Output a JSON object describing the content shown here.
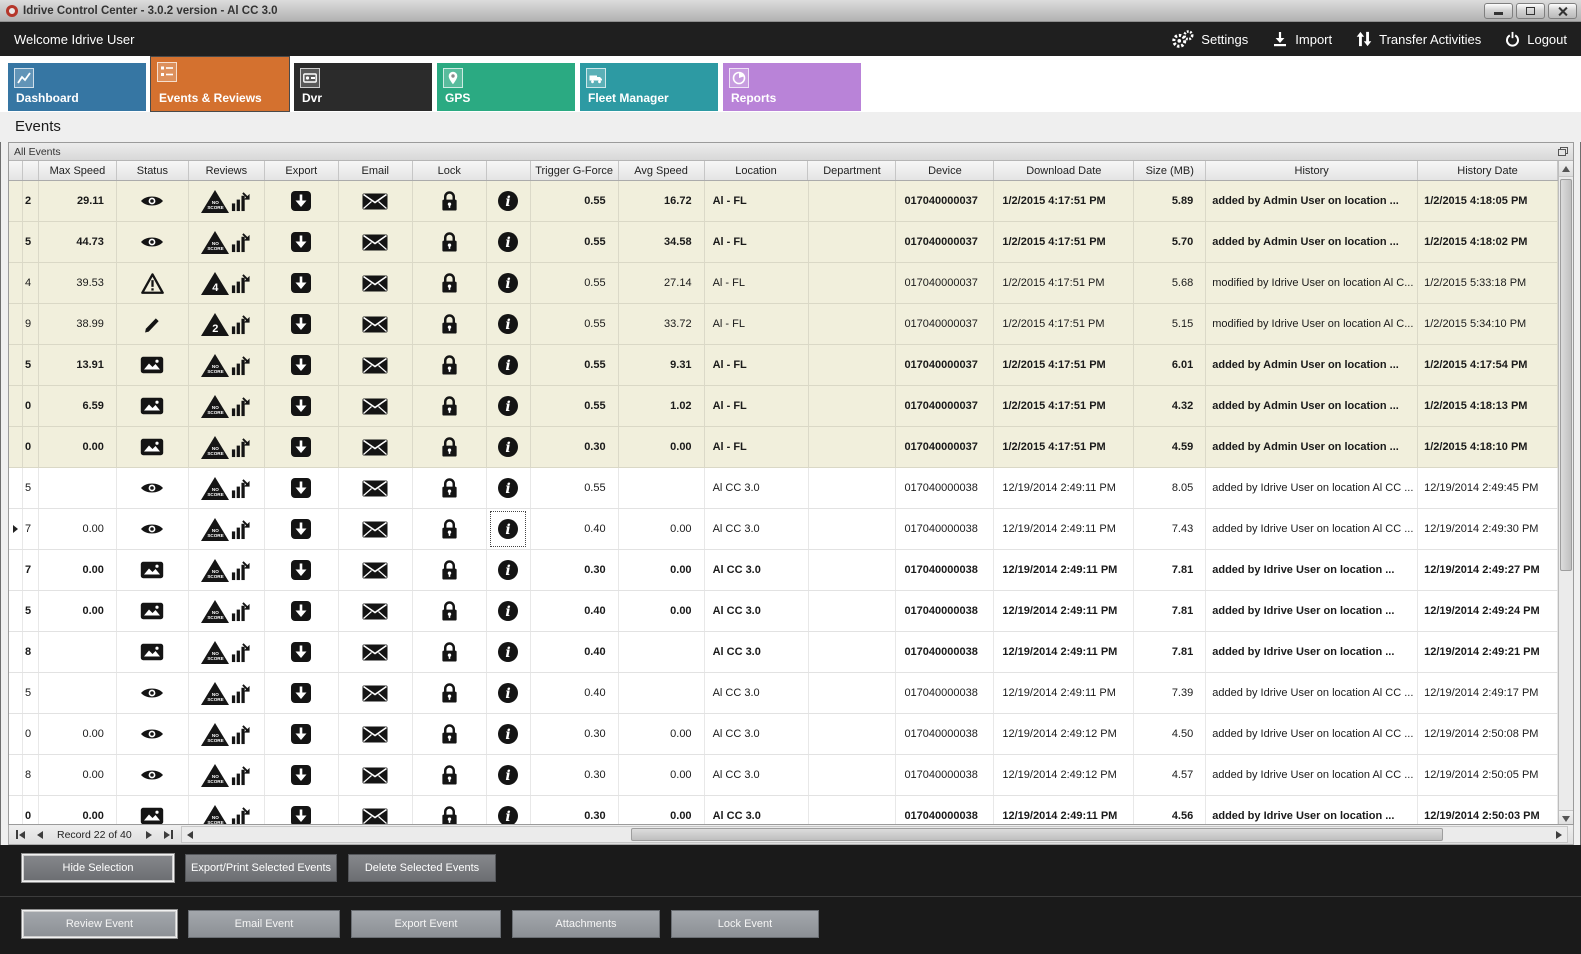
{
  "titlebar": {
    "title": "Idrive Control Center - 3.0.2 version - Al CC 3.0"
  },
  "menubar": {
    "welcome": "Welcome Idrive User",
    "settings": "Settings",
    "import": "Import",
    "transfer_activities": "Transfer Activities",
    "logout": "Logout"
  },
  "tabs": [
    {
      "label": "Dashboard",
      "color": "#3676A3",
      "selected": false
    },
    {
      "label": "Events & Reviews",
      "color": "#D4712F",
      "selected": true
    },
    {
      "label": "Dvr",
      "color": "#2B2B2B",
      "selected": false
    },
    {
      "label": "GPS",
      "color": "#2BAA82",
      "selected": false
    },
    {
      "label": "Fleet Manager",
      "color": "#2D9AA3",
      "selected": false
    },
    {
      "label": "Reports",
      "color": "#B983D8",
      "selected": false
    }
  ],
  "page": {
    "heading": "Events",
    "panel_title": "All Events"
  },
  "icons": {
    "menubar": [
      "gears-icon",
      "download-icon",
      "transfer-arrows-icon",
      "power-icon"
    ],
    "status_types": [
      "eye-icon",
      "warning-icon",
      "pencil-icon",
      "image-icon"
    ],
    "row_icons": [
      "score-triangle-icon",
      "review-chart-icon",
      "export-icon",
      "email-icon",
      "lock-icon",
      "info-icon"
    ]
  },
  "grid": {
    "columns": [
      "",
      "",
      "Max Speed",
      "Status",
      "Reviews",
      "Export",
      "Email",
      "Lock",
      "",
      "Trigger G-Force",
      "Avg Speed",
      "Location",
      "Department",
      "Device",
      "Download Date",
      "Size (MB)",
      "History",
      "History Date"
    ],
    "rows": [
      {
        "id": "2",
        "max_speed": "29.11",
        "status": "eye",
        "review_type": "noscore",
        "review_label": "NO SCORE",
        "trigger_g": "0.55",
        "avg_speed": "16.72",
        "location": "Al - FL",
        "department": "",
        "device": "017040000037",
        "download_date": "1/2/2015 4:17:51 PM",
        "size_mb": "5.89",
        "history": "added by Admin User on location ...",
        "history_date": "1/2/2015 4:18:05 PM",
        "bold": true,
        "beige": true,
        "selected": false
      },
      {
        "id": "5",
        "max_speed": "44.73",
        "status": "eye",
        "review_type": "noscore",
        "review_label": "NO SCORE",
        "trigger_g": "0.55",
        "avg_speed": "34.58",
        "location": "Al - FL",
        "department": "",
        "device": "017040000037",
        "download_date": "1/2/2015 4:17:51 PM",
        "size_mb": "5.70",
        "history": "added by Admin User on location ...",
        "history_date": "1/2/2015 4:18:02 PM",
        "bold": true,
        "beige": true,
        "selected": false
      },
      {
        "id": "4",
        "max_speed": "39.53",
        "status": "warning",
        "review_type": "score",
        "review_label": "4",
        "trigger_g": "0.55",
        "avg_speed": "27.14",
        "location": "Al - FL",
        "department": "",
        "device": "017040000037",
        "download_date": "1/2/2015 4:17:51 PM",
        "size_mb": "5.68",
        "history": "modified by Idrive User on location Al C...",
        "history_date": "1/2/2015 5:33:18 PM",
        "bold": false,
        "beige": true,
        "selected": false
      },
      {
        "id": "9",
        "max_speed": "38.99",
        "status": "pencil",
        "review_type": "score",
        "review_label": "2",
        "trigger_g": "0.55",
        "avg_speed": "33.72",
        "location": "Al - FL",
        "department": "",
        "device": "017040000037",
        "download_date": "1/2/2015 4:17:51 PM",
        "size_mb": "5.15",
        "history": "modified by Idrive User on location Al C...",
        "history_date": "1/2/2015 5:34:10 PM",
        "bold": false,
        "beige": true,
        "selected": false
      },
      {
        "id": "5",
        "max_speed": "13.91",
        "status": "image",
        "review_type": "noscore",
        "review_label": "NO SCORE",
        "trigger_g": "0.55",
        "avg_speed": "9.31",
        "location": "Al - FL",
        "department": "",
        "device": "017040000037",
        "download_date": "1/2/2015 4:17:51 PM",
        "size_mb": "6.01",
        "history": "added by Admin User on location ...",
        "history_date": "1/2/2015 4:17:54 PM",
        "bold": true,
        "beige": true,
        "selected": false
      },
      {
        "id": "0",
        "max_speed": "6.59",
        "status": "image",
        "review_type": "noscore",
        "review_label": "NO SCORE",
        "trigger_g": "0.55",
        "avg_speed": "1.02",
        "location": "Al - FL",
        "department": "",
        "device": "017040000037",
        "download_date": "1/2/2015 4:17:51 PM",
        "size_mb": "4.32",
        "history": "added by Admin User on location ...",
        "history_date": "1/2/2015 4:18:13 PM",
        "bold": true,
        "beige": true,
        "selected": false
      },
      {
        "id": "0",
        "max_speed": "0.00",
        "status": "image",
        "review_type": "noscore",
        "review_label": "NO SCORE",
        "trigger_g": "0.30",
        "avg_speed": "0.00",
        "location": "Al - FL",
        "department": "",
        "device": "017040000037",
        "download_date": "1/2/2015 4:17:51 PM",
        "size_mb": "4.59",
        "history": "added by Admin User on location ...",
        "history_date": "1/2/2015 4:18:10 PM",
        "bold": true,
        "beige": true,
        "selected": false
      },
      {
        "id": "5",
        "max_speed": "",
        "status": "eye",
        "review_type": "noscore",
        "review_label": "NO SCORE",
        "trigger_g": "0.55",
        "avg_speed": "",
        "location": "Al CC 3.0",
        "department": "",
        "device": "017040000038",
        "download_date": "12/19/2014 2:49:11 PM",
        "size_mb": "8.05",
        "history": "added by Idrive User on location Al CC ...",
        "history_date": "12/19/2014 2:49:45 PM",
        "bold": false,
        "beige": false,
        "selected": false
      },
      {
        "id": "7",
        "max_speed": "0.00",
        "status": "eye",
        "review_type": "noscore",
        "review_label": "NO SCORE",
        "trigger_g": "0.40",
        "avg_speed": "0.00",
        "location": "Al CC 3.0",
        "department": "",
        "device": "017040000038",
        "download_date": "12/19/2014 2:49:11 PM",
        "size_mb": "7.43",
        "history": "added by Idrive User on location Al CC ...",
        "history_date": "12/19/2014 2:49:30 PM",
        "bold": false,
        "beige": false,
        "selected": true
      },
      {
        "id": "7",
        "max_speed": "0.00",
        "status": "image",
        "review_type": "noscore",
        "review_label": "NO SCORE",
        "trigger_g": "0.30",
        "avg_speed": "0.00",
        "location": "Al CC 3.0",
        "department": "",
        "device": "017040000038",
        "download_date": "12/19/2014 2:49:11 PM",
        "size_mb": "7.81",
        "history": "added by Idrive User on location ...",
        "history_date": "12/19/2014 2:49:27 PM",
        "bold": true,
        "beige": false,
        "selected": false
      },
      {
        "id": "5",
        "max_speed": "0.00",
        "status": "image",
        "review_type": "noscore",
        "review_label": "NO SCORE",
        "trigger_g": "0.40",
        "avg_speed": "0.00",
        "location": "Al CC 3.0",
        "department": "",
        "device": "017040000038",
        "download_date": "12/19/2014 2:49:11 PM",
        "size_mb": "7.81",
        "history": "added by Idrive User on location ...",
        "history_date": "12/19/2014 2:49:24 PM",
        "bold": true,
        "beige": false,
        "selected": false
      },
      {
        "id": "8",
        "max_speed": "",
        "status": "image",
        "review_type": "noscore",
        "review_label": "NO SCORE",
        "trigger_g": "0.40",
        "avg_speed": "",
        "location": "Al CC 3.0",
        "department": "",
        "device": "017040000038",
        "download_date": "12/19/2014 2:49:11 PM",
        "size_mb": "7.81",
        "history": "added by Idrive User on location ...",
        "history_date": "12/19/2014 2:49:21 PM",
        "bold": true,
        "beige": false,
        "selected": false
      },
      {
        "id": "5",
        "max_speed": "",
        "status": "eye",
        "review_type": "noscore",
        "review_label": "NO SCORE",
        "trigger_g": "0.40",
        "avg_speed": "",
        "location": "Al CC 3.0",
        "department": "",
        "device": "017040000038",
        "download_date": "12/19/2014 2:49:11 PM",
        "size_mb": "7.39",
        "history": "added by Idrive User on location Al CC ...",
        "history_date": "12/19/2014 2:49:17 PM",
        "bold": false,
        "beige": false,
        "selected": false
      },
      {
        "id": "0",
        "max_speed": "0.00",
        "status": "eye",
        "review_type": "noscore",
        "review_label": "NO SCORE",
        "trigger_g": "0.30",
        "avg_speed": "0.00",
        "location": "Al CC 3.0",
        "department": "",
        "device": "017040000038",
        "download_date": "12/19/2014 2:49:12 PM",
        "size_mb": "4.50",
        "history": "added by Idrive User on location Al CC ...",
        "history_date": "12/19/2014 2:50:08 PM",
        "bold": false,
        "beige": false,
        "selected": false
      },
      {
        "id": "8",
        "max_speed": "0.00",
        "status": "eye",
        "review_type": "noscore",
        "review_label": "NO SCORE",
        "trigger_g": "0.30",
        "avg_speed": "0.00",
        "location": "Al CC 3.0",
        "department": "",
        "device": "017040000038",
        "download_date": "12/19/2014 2:49:12 PM",
        "size_mb": "4.57",
        "history": "added by Idrive User on location Al CC ...",
        "history_date": "12/19/2014 2:50:05 PM",
        "bold": false,
        "beige": false,
        "selected": false
      },
      {
        "id": "0",
        "max_speed": "0.00",
        "status": "image",
        "review_type": "noscore",
        "review_label": "NO SCORE",
        "trigger_g": "0.30",
        "avg_speed": "0.00",
        "location": "Al CC 3.0",
        "department": "",
        "device": "017040000038",
        "download_date": "12/19/2014 2:49:11 PM",
        "size_mb": "4.56",
        "history": "added by Idrive User on location ...",
        "history_date": "12/19/2014 2:50:03 PM",
        "bold": true,
        "beige": false,
        "selected": false
      }
    ]
  },
  "pager": {
    "record_label": "Record 22 of 40"
  },
  "actions": {
    "hide_selection": "Hide Selection",
    "export_print": "Export/Print Selected Events",
    "delete_selected": "Delete Selected Events",
    "review_event": "Review Event",
    "email_event": "Email Event",
    "export_event": "Export Event",
    "attachments": "Attachments",
    "lock_event": "Lock Event"
  }
}
